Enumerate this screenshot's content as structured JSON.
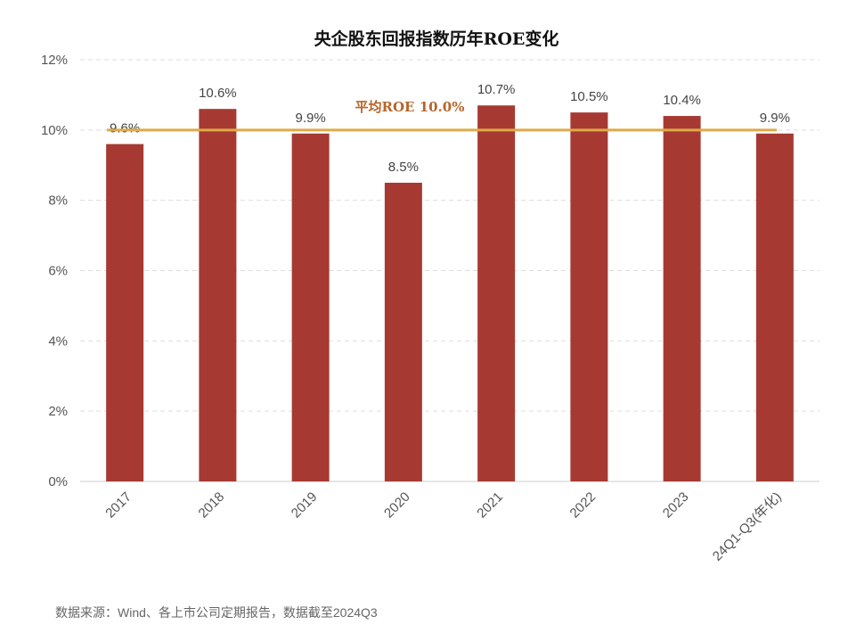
{
  "chart_data": {
    "type": "bar",
    "title": "央企股东回报指数历年ROE变化",
    "categories": [
      "2017",
      "2018",
      "2019",
      "2020",
      "2021",
      "2022",
      "2023",
      "24Q1-Q3(年化)"
    ],
    "values": [
      9.6,
      10.6,
      9.9,
      8.5,
      10.7,
      10.5,
      10.4,
      9.9
    ],
    "data_labels": [
      "9.6%",
      "10.6%",
      "9.9%",
      "8.5%",
      "10.7%",
      "10.5%",
      "10.4%",
      "9.9%"
    ],
    "ylim": [
      0,
      12
    ],
    "yticks": [
      0,
      2,
      4,
      6,
      8,
      10,
      12
    ],
    "ytick_labels": [
      "0%",
      "2%",
      "4%",
      "6%",
      "8%",
      "10%",
      "12%"
    ],
    "grid": true,
    "average_line": {
      "value": 10.0,
      "label": "平均ROE 10.0%"
    },
    "xlabel": "",
    "ylabel": "",
    "bar_color": "#a63a32",
    "avg_color": "#e0a94a",
    "source": "数据来源：Wind、各上市公司定期报告，数据截至2024Q3"
  }
}
